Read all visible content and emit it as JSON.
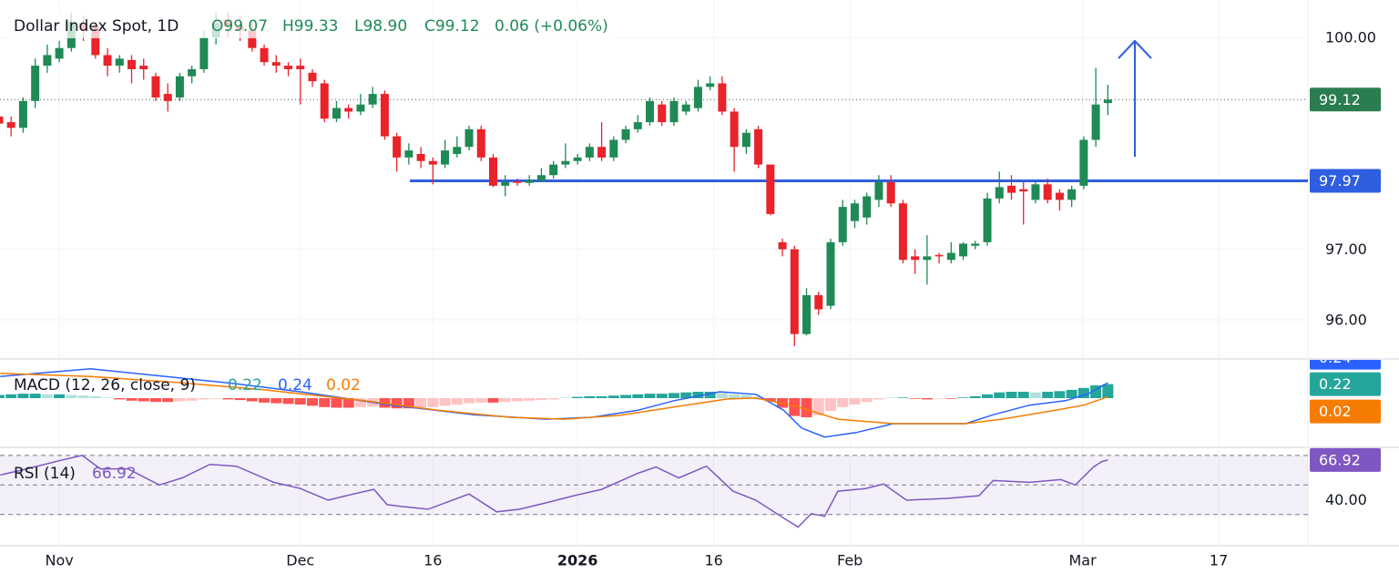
{
  "chart_data": [
    {
      "type": "candlestick",
      "title": "Dollar Index Spot, 1D",
      "legend_texts": [
        "O99.07",
        "H99.33",
        "L98.90",
        "C99.12",
        "0.06 (+0.06%)"
      ],
      "up_color": "#1f8a55",
      "down_color": "#e8232a",
      "open": [
        98.88,
        98.8,
        98.72,
        99.1,
        99.6,
        99.7,
        99.85,
        100.2,
        100.15,
        99.75,
        99.6,
        99.68,
        99.6,
        99.45,
        99.2,
        99.15,
        99.45,
        99.55,
        100.0,
        100.25,
        100.15,
        100.1,
        99.85,
        99.65,
        99.6,
        99.6,
        99.5,
        99.35,
        98.85,
        99.0,
        98.95,
        99.05,
        99.2,
        98.6,
        98.3,
        98.35,
        98.25,
        98.2,
        98.35,
        98.45,
        98.7,
        98.3,
        97.9,
        97.96,
        97.94,
        97.97,
        98.05,
        98.2,
        98.25,
        98.3,
        98.45,
        98.3,
        98.55,
        98.7,
        98.8,
        99.05,
        98.8,
        98.95,
        99.0,
        99.3,
        99.35,
        98.95,
        98.45,
        98.7,
        98.2,
        97.1,
        97.0,
        95.8,
        96.35,
        96.2,
        97.1,
        97.4,
        97.45,
        97.7,
        97.95,
        97.65,
        96.9,
        96.85,
        96.92,
        96.85,
        96.9,
        97.05,
        97.1,
        97.72,
        97.9,
        97.85,
        97.7,
        97.92,
        97.8,
        97.7,
        97.9,
        98.55,
        99.07
      ],
      "high": [
        98.95,
        98.88,
        99.15,
        99.7,
        99.9,
        99.95,
        100.35,
        100.3,
        100.2,
        99.85,
        99.75,
        99.75,
        99.7,
        99.5,
        99.35,
        99.5,
        99.6,
        100.1,
        100.35,
        100.35,
        100.3,
        100.2,
        99.9,
        99.75,
        99.65,
        99.7,
        99.55,
        99.4,
        99.1,
        99.05,
        99.2,
        99.3,
        99.25,
        98.65,
        98.5,
        98.45,
        98.3,
        98.55,
        98.6,
        98.75,
        98.75,
        98.35,
        98.05,
        98.0,
        98.05,
        98.15,
        98.25,
        98.5,
        98.35,
        98.5,
        98.8,
        98.6,
        98.75,
        98.9,
        99.15,
        99.1,
        99.15,
        99.1,
        99.4,
        99.45,
        99.45,
        99.0,
        98.7,
        98.75,
        98.2,
        97.15,
        97.05,
        96.45,
        96.4,
        97.15,
        97.7,
        97.7,
        97.8,
        98.05,
        98.05,
        97.7,
        97.0,
        97.2,
        96.95,
        97.1,
        97.1,
        97.12,
        97.8,
        98.1,
        98.05,
        97.95,
        97.95,
        98.0,
        97.85,
        97.9,
        98.6,
        99.57,
        99.33
      ],
      "low": [
        98.7,
        98.6,
        98.65,
        99.0,
        99.5,
        99.65,
        99.8,
        99.95,
        99.7,
        99.45,
        99.5,
        99.35,
        99.4,
        99.1,
        98.95,
        99.1,
        99.35,
        99.5,
        99.9,
        100.0,
        99.95,
        99.8,
        99.6,
        99.5,
        99.45,
        99.05,
        99.3,
        98.8,
        98.8,
        98.85,
        98.9,
        99.0,
        98.55,
        98.1,
        98.2,
        98.15,
        97.92,
        98.15,
        98.3,
        98.4,
        98.25,
        97.88,
        97.75,
        97.9,
        97.9,
        97.95,
        98.0,
        98.15,
        98.2,
        98.25,
        98.25,
        98.25,
        98.5,
        98.65,
        98.75,
        98.75,
        98.75,
        98.9,
        98.95,
        99.25,
        98.9,
        98.1,
        98.35,
        98.15,
        97.48,
        96.9,
        95.63,
        95.78,
        96.07,
        96.15,
        97.05,
        97.3,
        97.35,
        97.6,
        97.6,
        96.8,
        96.65,
        96.5,
        96.8,
        96.8,
        96.85,
        97.0,
        97.05,
        97.65,
        97.7,
        97.35,
        97.65,
        97.65,
        97.55,
        97.6,
        97.85,
        98.45,
        98.9
      ],
      "close": [
        98.78,
        98.72,
        99.1,
        99.6,
        99.75,
        99.85,
        100.22,
        100.1,
        99.75,
        99.6,
        99.7,
        99.55,
        99.55,
        99.15,
        99.1,
        99.45,
        99.55,
        100.0,
        100.2,
        100.15,
        100.1,
        99.85,
        99.65,
        99.6,
        99.55,
        99.55,
        99.38,
        98.85,
        99.0,
        98.95,
        99.05,
        99.2,
        98.6,
        98.3,
        98.4,
        98.25,
        98.2,
        98.4,
        98.45,
        98.7,
        98.3,
        97.9,
        97.95,
        97.94,
        97.98,
        98.05,
        98.2,
        98.25,
        98.3,
        98.45,
        98.3,
        98.55,
        98.7,
        98.8,
        99.1,
        98.8,
        99.1,
        99.05,
        99.3,
        99.35,
        98.95,
        98.45,
        98.65,
        98.2,
        97.5,
        97.0,
        95.8,
        96.35,
        96.15,
        97.1,
        97.6,
        97.65,
        97.75,
        97.95,
        97.65,
        96.85,
        96.85,
        96.9,
        96.9,
        96.95,
        97.08,
        97.08,
        97.72,
        97.88,
        97.8,
        97.82,
        97.92,
        97.7,
        97.7,
        97.85,
        98.55,
        99.05,
        99.12
      ],
      "xlim": [
        0.08,
        108.6
      ],
      "xticks": [
        {
          "value": 5,
          "label": "Nov"
        },
        {
          "value": 25,
          "label": "Dec"
        },
        {
          "value": 36,
          "label": "16"
        },
        {
          "value": 48,
          "label": "2026"
        },
        {
          "value": 59.3,
          "label": "16"
        },
        {
          "value": 70.6,
          "label": "Feb"
        },
        {
          "value": 89.9,
          "label": "Mar"
        },
        {
          "value": 101.2,
          "label": "17"
        }
      ],
      "ylim": [
        95.46,
        100.53
      ],
      "yticks": [
        {
          "value": 100,
          "label": "100.00"
        },
        {
          "value": 97,
          "label": "97.00"
        },
        {
          "value": 96,
          "label": "96.00"
        }
      ],
      "last_price": 99.12,
      "last_price_color": "#2a7d4f",
      "hline": {
        "value": 97.97,
        "color": "#2f5fe0"
      },
      "grid": true
    },
    {
      "type": "macd",
      "title": "MACD (12, 26, close, 9)",
      "ylim": [
        -0.757,
        0.6
      ],
      "series": [
        {
          "kind": "histogram",
          "color": "#26a69a",
          "negative_color": "#ff5252",
          "last": 0.22,
          "values": [
            0.05,
            0.06,
            0.07,
            0.07,
            0.06,
            0.06,
            0.05,
            0.04,
            0.03,
            0.01,
            -0.02,
            -0.04,
            -0.05,
            -0.06,
            -0.06,
            -0.05,
            -0.04,
            -0.02,
            -0.01,
            -0.02,
            -0.03,
            -0.05,
            -0.07,
            -0.08,
            -0.09,
            -0.1,
            -0.12,
            -0.14,
            -0.15,
            -0.15,
            -0.14,
            -0.13,
            -0.15,
            -0.16,
            -0.16,
            -0.15,
            -0.14,
            -0.12,
            -0.1,
            -0.08,
            -0.07,
            -0.07,
            -0.06,
            -0.05,
            -0.04,
            -0.03,
            -0.02,
            0.01,
            0.02,
            0.03,
            0.03,
            0.04,
            0.05,
            0.06,
            0.07,
            0.07,
            0.08,
            0.09,
            0.1,
            0.1,
            0.08,
            0.06,
            0.05,
            0.02,
            -0.05,
            -0.15,
            -0.28,
            -0.3,
            -0.27,
            -0.2,
            -0.14,
            -0.1,
            -0.06,
            -0.02,
            0.01,
            0.01,
            -0.01,
            -0.02,
            -0.01,
            -0.01,
            0.01,
            0.03,
            0.06,
            0.09,
            0.1,
            0.1,
            0.09,
            0.1,
            0.11,
            0.13,
            0.16,
            0.2,
            0.22
          ]
        },
        {
          "kind": "line",
          "color": "#2962ff",
          "last": 0.24,
          "x": [
            0.1,
            7.6,
            19,
            25,
            32.6,
            39.4,
            45.4,
            49.2,
            53,
            56,
            59.8,
            62.8,
            65.1,
            66.6,
            68.5,
            71.1,
            74.2,
            77.2,
            80.2,
            82.5,
            85.5,
            88.5,
            90.4,
            92
          ],
          "values": [
            0.34,
            0.46,
            0.24,
            0.1,
            -0.11,
            -0.26,
            -0.33,
            -0.3,
            -0.19,
            -0.04,
            0.1,
            0.06,
            -0.19,
            -0.47,
            -0.61,
            -0.54,
            -0.4,
            -0.4,
            -0.4,
            -0.26,
            -0.11,
            -0.04,
            0.07,
            0.24
          ]
        },
        {
          "kind": "line",
          "color": "#f57c00",
          "last": 0.02,
          "x": [
            0.1,
            7.6,
            15.2,
            22,
            30.3,
            36.4,
            42.4,
            46.9,
            51.5,
            56,
            60.5,
            62.8,
            65.8,
            69.6,
            74.2,
            80.2,
            83.2,
            87,
            90,
            92
          ],
          "values": [
            0.39,
            0.34,
            0.24,
            0.13,
            -0.04,
            -0.19,
            -0.3,
            -0.33,
            -0.27,
            -0.14,
            -0.01,
            0,
            -0.11,
            -0.33,
            -0.4,
            -0.4,
            -0.33,
            -0.21,
            -0.11,
            0.02
          ]
        }
      ]
    },
    {
      "type": "line",
      "title": "RSI (14)",
      "color": "#7e57c2",
      "last": 66.92,
      "ylim": [
        9.5,
        74.2
      ],
      "yticks": [
        {
          "value": 40,
          "label": "40.00"
        }
      ],
      "levels": [
        70,
        50,
        30
      ],
      "x": [
        0.1,
        2.3,
        5,
        6.9,
        8.4,
        10.7,
        13.3,
        15.2,
        17.5,
        19.7,
        22.8,
        25,
        27.3,
        28.8,
        31.1,
        32.2,
        33.3,
        35.6,
        39,
        41.3,
        43.2,
        45.4,
        47.7,
        50,
        53,
        54.5,
        56.4,
        58.7,
        60.9,
        62.8,
        65.1,
        66.3,
        67.4,
        68.5,
        69.6,
        71.9,
        73.4,
        75.3,
        78.7,
        81.3,
        82.5,
        85.5,
        88.1,
        89.3,
        90.8,
        91.5,
        92
      ],
      "values": [
        56.7,
        60.9,
        66.4,
        70,
        60.9,
        60.9,
        50,
        54.8,
        63.9,
        62.7,
        51.8,
        47.6,
        39.7,
        42.7,
        47,
        36.7,
        35.5,
        33.6,
        43.9,
        31.8,
        33.6,
        37.9,
        42.7,
        47,
        57.9,
        62.1,
        54.8,
        62.7,
        45.8,
        39.7,
        27.6,
        21.5,
        30.6,
        28.8,
        45.8,
        47.6,
        50.6,
        39.7,
        40.9,
        42.7,
        53,
        51.8,
        53.6,
        50,
        62.1,
        65.8,
        66.92
      ]
    }
  ]
}
